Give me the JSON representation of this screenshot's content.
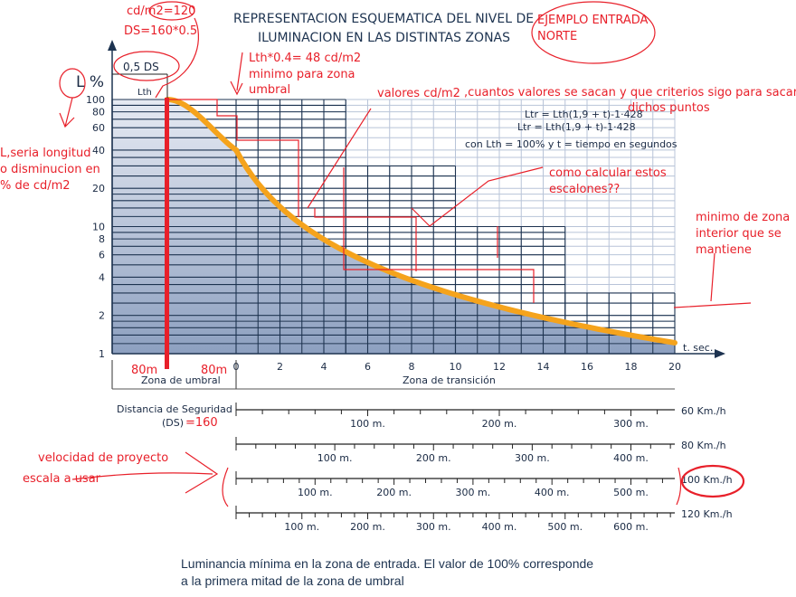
{
  "title": [
    "REPRESENTACION ESQUEMATICA DEL NIVEL DE",
    "ILUMINACION EN LAS DISTINTAS ZONAS"
  ],
  "formula": {
    "line1": "Ltr = Lth(1,9 + t)-1·428",
    "line2": "Ltr = Lth(1,9 + t)-1·428",
    "line3": "con Lth = 100% y t = tiempo en segundos"
  },
  "labels": {
    "half_ds": "0,5 DS",
    "lth": "Lth",
    "zona_umbral": "Zona de umbral",
    "zona_transicion": "Zona de transición",
    "distancia": "Distancia de Seguridad",
    "ds": "(DS)",
    "t_sec": "t. sec."
  },
  "caption": [
    "Luminancia mínima en la zona de entrada. El valor de 100% corresponde",
    "a la primera mitad de la zona de umbral"
  ],
  "speed_scales": [
    {
      "label": "60 Km./h",
      "kmh": 60,
      "marks": [
        "100 m.",
        "200 m.",
        "300 m."
      ]
    },
    {
      "label": "80 Km./h",
      "kmh": 80,
      "marks": [
        "100 m.",
        "200 m.",
        "300 m.",
        "400 m."
      ]
    },
    {
      "label": "100 Km./h",
      "kmh": 100,
      "marks": [
        "100 m.",
        "200 m.",
        "300 m.",
        "400 m.",
        "500 m."
      ]
    },
    {
      "label": "120 Km./h",
      "kmh": 120,
      "marks": [
        "100 m.",
        "200 m.",
        "300 m.",
        "400 m.",
        "500 m.",
        "600 m."
      ]
    }
  ],
  "annotations": {
    "cd": "cd/m2=120",
    "ds_calc": "DS=160*0.5",
    "ejemplo": [
      "EJEMPLO ENTRADA",
      "NORTE"
    ],
    "lth_min": [
      "Lth*0.4= 48 cd/m2",
      "minimo para zona",
      "umbral"
    ],
    "valores": "valores cd/m2",
    "pregunta": [
      ",cuantos valores se sacan y que criterios sigo para sacar",
      "dichos puntos"
    ],
    "escalones": [
      "como calcular estos",
      "escalones??"
    ],
    "minimo_interior": [
      "minimo de zona",
      "interior que se",
      "mantiene"
    ],
    "l_desc": [
      "L,seria longitud",
      "o disminucion en",
      "% de cd/m2"
    ],
    "m80a": "80m",
    "m80b": "80m",
    "ds_val": "=160",
    "velocidad": "velocidad de proyecto",
    "escala": "escala a usar"
  },
  "colors": {
    "curve": "#f5a31c",
    "grid_dark": "#1d3350",
    "grid_light": "#b8c4d8",
    "annot": "#e8202a"
  },
  "chart_data": {
    "type": "line",
    "title": "REPRESENTACION ESQUEMATICA DEL NIVEL DE ILUMINACION EN LAS DISTINTAS ZONAS",
    "xlabel": "t. sec.",
    "ylabel": "L %",
    "xlim": [
      0,
      20
    ],
    "ylim": [
      1,
      100
    ],
    "yscale": "log",
    "grid": true,
    "x_ticks": [
      0,
      2,
      4,
      6,
      8,
      10,
      12,
      14,
      16,
      18,
      20
    ],
    "y_ticks": [
      1,
      2,
      4,
      6,
      8,
      10,
      20,
      40,
      60,
      80,
      100
    ],
    "series": [
      {
        "x": [
          0,
          1,
          2,
          3,
          4,
          5,
          6,
          8,
          10,
          12,
          14,
          16,
          18,
          20
        ],
        "y": [
          40,
          21.8,
          14.3,
          10.3,
          7.9,
          6.3,
          5.2,
          3.8,
          2.9,
          2.4,
          1.9,
          1.6,
          1.4,
          1.2
        ]
      }
    ],
    "steps": [
      {
        "t_end": 5,
        "value": 100
      },
      {
        "t_end": 10,
        "value": 30
      },
      {
        "t_end": 15,
        "value": 10
      },
      {
        "t_end": 20,
        "value": 3
      }
    ]
  }
}
